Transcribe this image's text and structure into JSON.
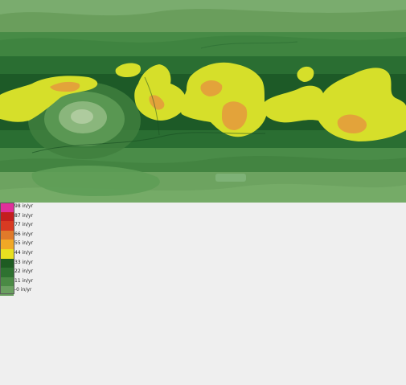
{
  "map": {
    "kind": "precipitation-map",
    "colors": {
      "deep_green": "#1e5c2a",
      "mid_green": "#2f7a38",
      "light_green": "#5f9a55",
      "pale_green": "#7aab6a",
      "yellow": "#d6df2a",
      "orange": "#e3a33a"
    }
  },
  "legend": {
    "items": [
      {
        "label": "98 in/yr",
        "color": "#e0309a"
      },
      {
        "label": "87 in/yr",
        "color": "#c41e1e"
      },
      {
        "label": "77 in/yr",
        "color": "#d83a22"
      },
      {
        "label": "66 in/yr",
        "color": "#e07a2a"
      },
      {
        "label": "55 in/yr",
        "color": "#f0a826"
      },
      {
        "label": "44 in/yr",
        "color": "#e8e020"
      },
      {
        "label": "33 in/yr",
        "color": "#1e5c22"
      },
      {
        "label": "22 in/yr",
        "color": "#2e7230"
      },
      {
        "label": "11 in/yr",
        "color": "#4a8a44"
      },
      {
        "label": "-0 in/yr",
        "color": "#6aa060"
      }
    ]
  }
}
